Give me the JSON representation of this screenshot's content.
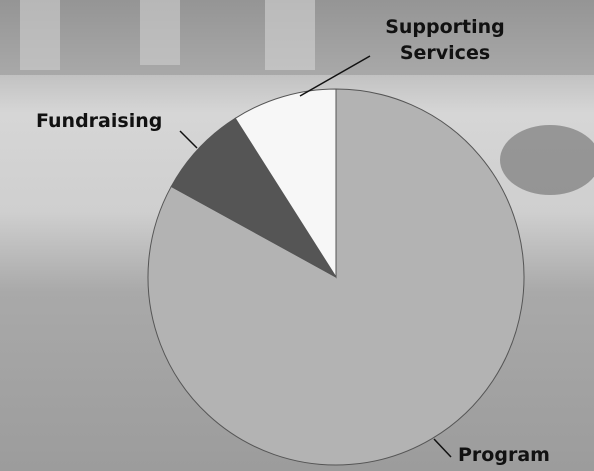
{
  "chart_data": {
    "type": "pie",
    "categories": [
      "Program",
      "Fundraising",
      "Supporting Services"
    ],
    "values": [
      83,
      8,
      9
    ],
    "colors": [
      "#b3b3b3",
      "#555555",
      "#f7f7f7"
    ]
  }
}
